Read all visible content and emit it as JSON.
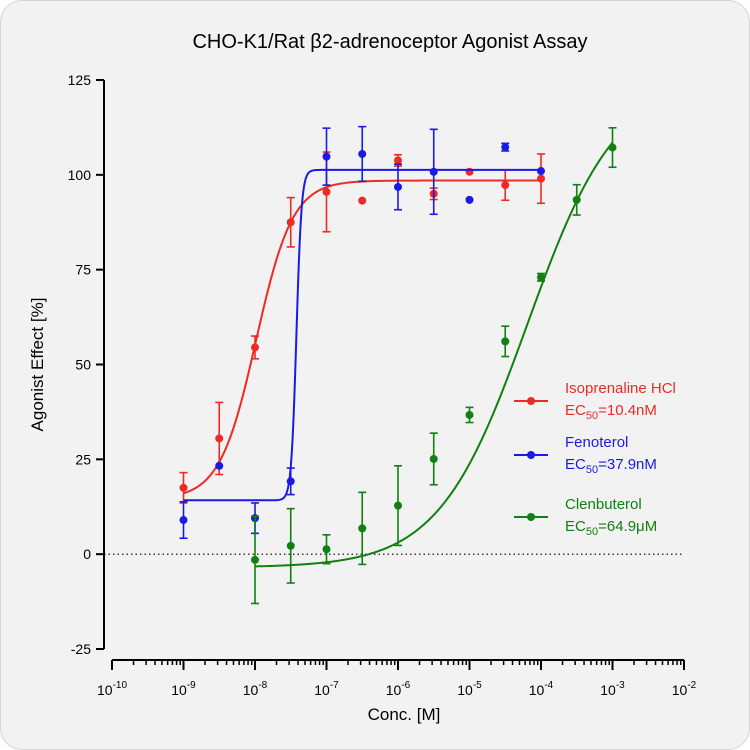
{
  "chart_data": {
    "type": "scatter",
    "title": "CHO-K1/Rat β2-adrenoceptor Agonist Assay",
    "xlabel": "Conc. [M]",
    "ylabel": "Agonist Effect [%]",
    "xscale": "log",
    "xlim_exponent": [
      -10,
      -2
    ],
    "ylim": [
      -25,
      125
    ],
    "y_ticks": [
      -25,
      0,
      25,
      50,
      75,
      100,
      125
    ],
    "x_tick_labels": [
      {
        "base": "10",
        "exp": "-10"
      },
      {
        "base": "10",
        "exp": "-9"
      },
      {
        "base": "10",
        "exp": "-8"
      },
      {
        "base": "10",
        "exp": "-7"
      },
      {
        "base": "10",
        "exp": "-6"
      },
      {
        "base": "10",
        "exp": "-5"
      },
      {
        "base": "10",
        "exp": "-4"
      },
      {
        "base": "10",
        "exp": "-3"
      },
      {
        "base": "10",
        "exp": "-2"
      }
    ],
    "baseline": {
      "y": 0,
      "style": "dotted"
    },
    "legend_position": "right",
    "series": [
      {
        "name": "Isoprenaline HCl",
        "ec50_prefix": "EC",
        "ec50_sub": "50",
        "ec50_value": "=10.4nM",
        "color": "#ee2a24",
        "fit": {
          "bottom": 14.5,
          "top": 98.5,
          "log_ec50": -7.983,
          "hill": 1.7
        },
        "points": [
          {
            "x": 1e-09,
            "y": 17.5,
            "err": 4
          },
          {
            "x": 3.16e-09,
            "y": 30.5,
            "err": 9.5
          },
          {
            "x": 1e-08,
            "y": 54.5,
            "err": 3
          },
          {
            "x": 3.16e-08,
            "y": 87.5,
            "err": 6.5
          },
          {
            "x": 1e-07,
            "y": 95.5,
            "err": 10.5
          },
          {
            "x": 3.16e-07,
            "y": 93.2,
            "err": 0
          },
          {
            "x": 1e-06,
            "y": 103.8,
            "err": 1.5
          },
          {
            "x": 3.16e-06,
            "y": 95,
            "err": 1.5
          },
          {
            "x": 1e-05,
            "y": 100.8,
            "err": 0
          },
          {
            "x": 3.16e-05,
            "y": 97.3,
            "err": 4
          },
          {
            "x": 0.0001,
            "y": 99,
            "err": 6.5
          }
        ]
      },
      {
        "name": "Fenoterol",
        "ec50_prefix": "EC",
        "ec50_sub": "50",
        "ec50_value": "=37.9nM",
        "color": "#1a1ae6",
        "fit": {
          "bottom": 14.2,
          "top": 101.3,
          "log_ec50": -7.421,
          "hill": 12
        },
        "points": [
          {
            "x": 1e-09,
            "y": 9,
            "err": 4.8
          },
          {
            "x": 3.16e-09,
            "y": 23.3,
            "err": 0
          },
          {
            "x": 1e-08,
            "y": 9.5,
            "err": 4
          },
          {
            "x": 3.16e-08,
            "y": 19.2,
            "err": 3.5
          },
          {
            "x": 1e-07,
            "y": 104.8,
            "err": 7.5
          },
          {
            "x": 3.16e-07,
            "y": 105.5,
            "err": 7.2
          },
          {
            "x": 1e-06,
            "y": 96.8,
            "err": 6
          },
          {
            "x": 3.16e-06,
            "y": 100.8,
            "err": 11.2
          },
          {
            "x": 1e-05,
            "y": 93.4,
            "err": 0
          },
          {
            "x": 3.16e-05,
            "y": 107.3,
            "err": 1
          },
          {
            "x": 0.0001,
            "y": 101,
            "err": 0
          }
        ]
      },
      {
        "name": "Clenbuterol",
        "ec50_prefix": "EC",
        "ec50_sub": "50",
        "ec50_value": "=64.9μM",
        "color": "#108010",
        "fit": {
          "bottom": -3.5,
          "top": 125,
          "log_ec50": -4.188,
          "hill": 0.7
        },
        "points": [
          {
            "x": 1e-08,
            "y": -1.5,
            "err": 11.5
          },
          {
            "x": 3.16e-08,
            "y": 2.2,
            "err": 9.8
          },
          {
            "x": 1e-07,
            "y": 1.3,
            "err": 3.8
          },
          {
            "x": 3.16e-07,
            "y": 6.8,
            "err": 9.5
          },
          {
            "x": 1e-06,
            "y": 12.8,
            "err": 10.5
          },
          {
            "x": 3.16e-06,
            "y": 25.1,
            "err": 6.8
          },
          {
            "x": 1e-05,
            "y": 36.7,
            "err": 2
          },
          {
            "x": 3.16e-05,
            "y": 56.1,
            "err": 4
          },
          {
            "x": 0.0001,
            "y": 73,
            "err": 1
          },
          {
            "x": 0.000316,
            "y": 93.4,
            "err": 4
          },
          {
            "x": 0.001,
            "y": 107.2,
            "err": 5.2
          }
        ]
      }
    ]
  }
}
